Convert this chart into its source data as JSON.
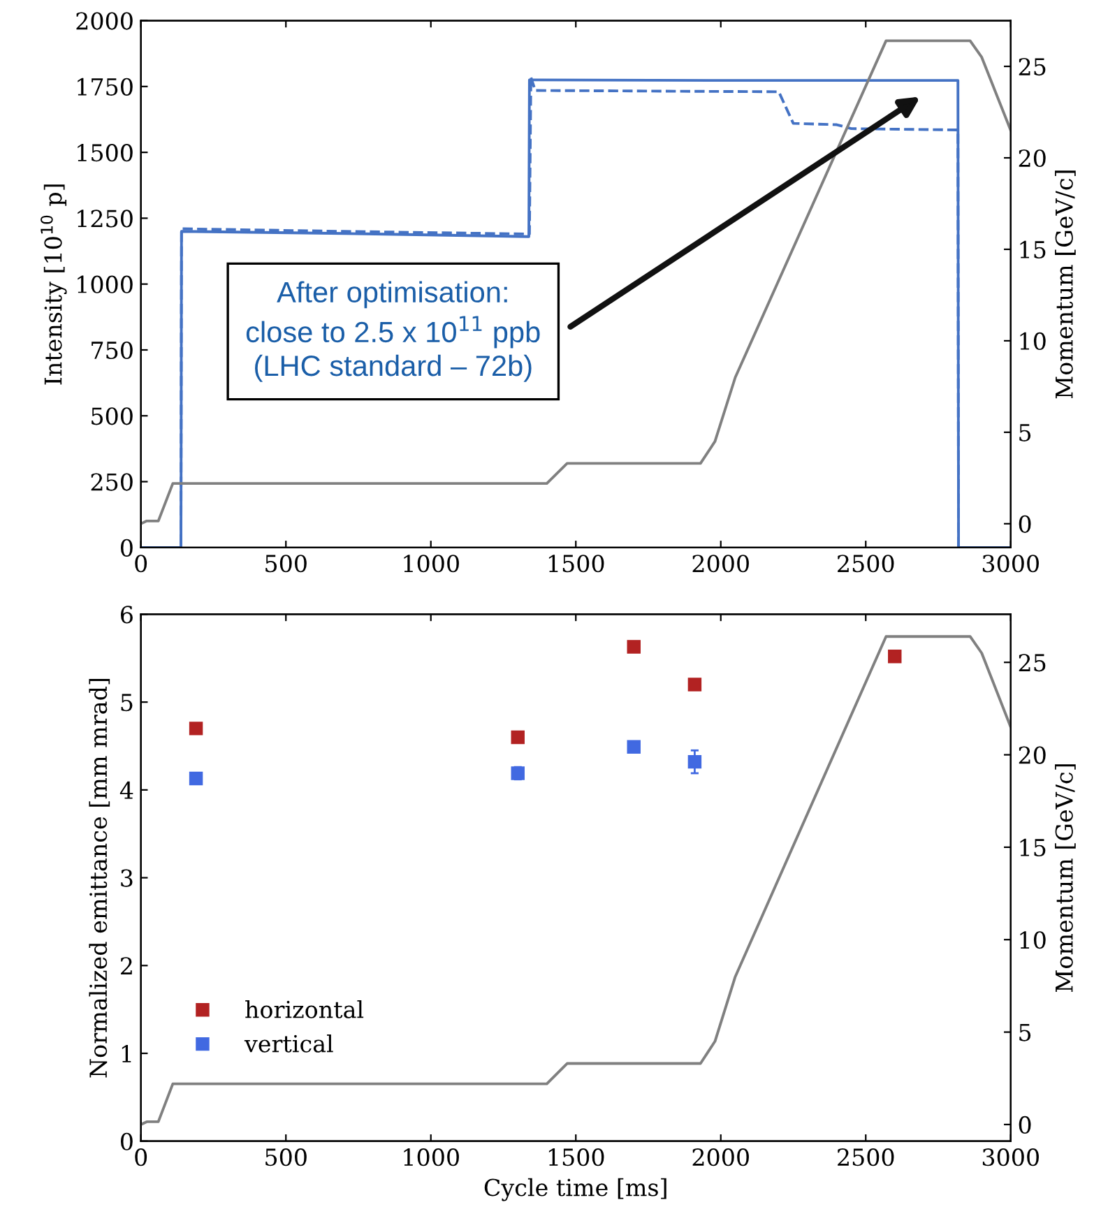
{
  "chart_data": [
    {
      "type": "line",
      "ylabel": "Intensity [10$^{10}$ p]",
      "y2label": "Momentum [GeV/c]",
      "xlim": [
        0,
        3000
      ],
      "xticks": [
        0,
        500,
        1000,
        1500,
        2000,
        2500,
        3000
      ],
      "ylim": [
        0,
        2000
      ],
      "yticks": [
        0,
        250,
        500,
        750,
        1000,
        1250,
        1500,
        1750,
        2000
      ],
      "y2lim": [
        -1.3,
        27.5
      ],
      "y2ticks": [
        0,
        5,
        10,
        15,
        20,
        25
      ],
      "grid": false,
      "legend": false,
      "series": [
        {
          "color": "#4472c4",
          "line_style": "solid",
          "x": [
            0,
            138,
            140,
            700,
            1338,
            1340,
            2000,
            2818,
            2820,
            3000
          ],
          "values": [
            0,
            0,
            1200,
            1192,
            1180,
            1775,
            1773,
            1773,
            0,
            0
          ]
        },
        {
          "color": "#4472c4",
          "line_style": "dashed",
          "x": [
            0,
            138,
            140,
            700,
            1340,
            1345,
            1360,
            2200,
            2250,
            2400,
            2450,
            2818,
            2820,
            3000
          ],
          "values": [
            0,
            0,
            1210,
            1200,
            1190,
            1785,
            1735,
            1730,
            1610,
            1605,
            1590,
            1585,
            0,
            0
          ]
        },
        {
          "type": "line",
          "axis": "y2",
          "color": "#808080",
          "line_style": "solid",
          "x": [
            0,
            20,
            60,
            110,
            1400,
            1470,
            1930,
            1980,
            2050,
            2570,
            2860,
            2900,
            3000
          ],
          "values": [
            0,
            0.15,
            0.15,
            2.2,
            2.2,
            3.3,
            3.3,
            4.5,
            8,
            26.4,
            26.4,
            25.5,
            21.5
          ]
        }
      ],
      "annotations": [
        "After optimisation:\nclose to 2.5 x 10$^{11}$ ppb\n(LHC standard – 72b)"
      ]
    },
    {
      "type": "scatter",
      "xlabel": "Cycle time [ms]",
      "ylabel": "Normalized emittance [mm mrad]",
      "y2label": "Momentum [GeV/c]",
      "xlim": [
        0,
        3000
      ],
      "xticks": [
        0,
        500,
        1000,
        1500,
        2000,
        2500,
        3000
      ],
      "ylim": [
        0,
        6
      ],
      "yticks": [
        0,
        1,
        2,
        3,
        4,
        5,
        6
      ],
      "y2lim": [
        -0.9,
        27.6
      ],
      "y2ticks": [
        0,
        5,
        10,
        15,
        20,
        25
      ],
      "grid": false,
      "legend": "bottom left",
      "series": [
        {
          "name": "horizontal",
          "marker": "square",
          "color": "#b22222",
          "x": [
            190,
            1300,
            1700,
            1910,
            2600
          ],
          "values": [
            4.7,
            4.6,
            5.63,
            5.2,
            5.52
          ],
          "errors": [
            0.03,
            0.05,
            0.03,
            0.03,
            0.03
          ]
        },
        {
          "name": "vertical",
          "marker": "square",
          "color": "#4169e1",
          "x": [
            190,
            1300,
            1700,
            1910
          ],
          "values": [
            4.13,
            4.19,
            4.49,
            4.32
          ],
          "errors": [
            0.03,
            0.07,
            0.04,
            0.13
          ]
        },
        {
          "type": "line",
          "axis": "y2",
          "color": "#808080",
          "line_style": "solid",
          "x": [
            0,
            20,
            60,
            110,
            1400,
            1470,
            1930,
            1980,
            2050,
            2570,
            2860,
            2900,
            3000
          ],
          "values": [
            0,
            0.15,
            0.15,
            2.2,
            2.2,
            3.3,
            3.3,
            4.5,
            8,
            26.4,
            26.4,
            25.5,
            21.5
          ]
        }
      ]
    }
  ]
}
